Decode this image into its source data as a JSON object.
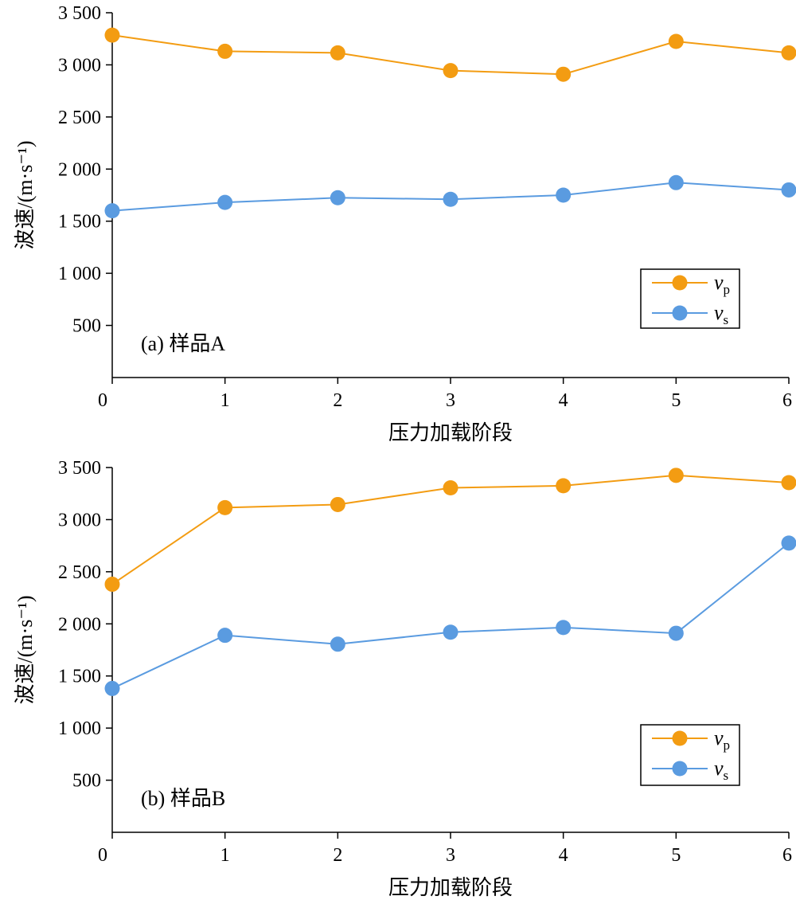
{
  "colors": {
    "vp": "#F39C12",
    "vs": "#5A9BE0",
    "axis": "#000000"
  },
  "chart_data": [
    {
      "type": "line",
      "annotation": "(a) 样品A",
      "xlabel": "压力加载阶段",
      "ylabel": "波速/(m·s⁻¹)",
      "x": [
        0,
        1,
        2,
        3,
        4,
        5,
        6
      ],
      "xticks": [
        "0",
        "1",
        "2",
        "3",
        "4",
        "5",
        "6"
      ],
      "xlim": [
        0,
        6
      ],
      "ylim": [
        0,
        3500
      ],
      "yticks": [
        {
          "value": 500,
          "label": "500"
        },
        {
          "value": 1000,
          "label": "1 000"
        },
        {
          "value": 1500,
          "label": "1 500"
        },
        {
          "value": 2000,
          "label": "2 000"
        },
        {
          "value": 2500,
          "label": "2 500"
        },
        {
          "value": 3000,
          "label": "3 000"
        },
        {
          "value": 3500,
          "label": "3 500"
        }
      ],
      "legend_position": "lower-right",
      "series": [
        {
          "name": "v",
          "subscript": "p",
          "color": "#F39C12",
          "values": [
            3285,
            3130,
            3115,
            2945,
            2910,
            3225,
            3115
          ]
        },
        {
          "name": "v",
          "subscript": "s",
          "color": "#5A9BE0",
          "values": [
            1600,
            1680,
            1725,
            1710,
            1750,
            1870,
            1800
          ]
        }
      ]
    },
    {
      "type": "line",
      "annotation": "(b) 样品B",
      "xlabel": "压力加载阶段",
      "ylabel": "波速/(m·s⁻¹)",
      "x": [
        0,
        1,
        2,
        3,
        4,
        5,
        6
      ],
      "xticks": [
        "0",
        "1",
        "2",
        "3",
        "4",
        "5",
        "6"
      ],
      "xlim": [
        0,
        6
      ],
      "ylim": [
        0,
        3500
      ],
      "yticks": [
        {
          "value": 500,
          "label": "500"
        },
        {
          "value": 1000,
          "label": "1 000"
        },
        {
          "value": 1500,
          "label": "1 500"
        },
        {
          "value": 2000,
          "label": "2 000"
        },
        {
          "value": 2500,
          "label": "2 500"
        },
        {
          "value": 3000,
          "label": "3 000"
        },
        {
          "value": 3500,
          "label": "3 500"
        }
      ],
      "legend_position": "lower-right",
      "series": [
        {
          "name": "v",
          "subscript": "p",
          "color": "#F39C12",
          "values": [
            2380,
            3115,
            3145,
            3305,
            3325,
            3425,
            3355
          ]
        },
        {
          "name": "v",
          "subscript": "s",
          "color": "#5A9BE0",
          "values": [
            1380,
            1890,
            1805,
            1920,
            1965,
            1910,
            2775
          ]
        }
      ]
    }
  ]
}
